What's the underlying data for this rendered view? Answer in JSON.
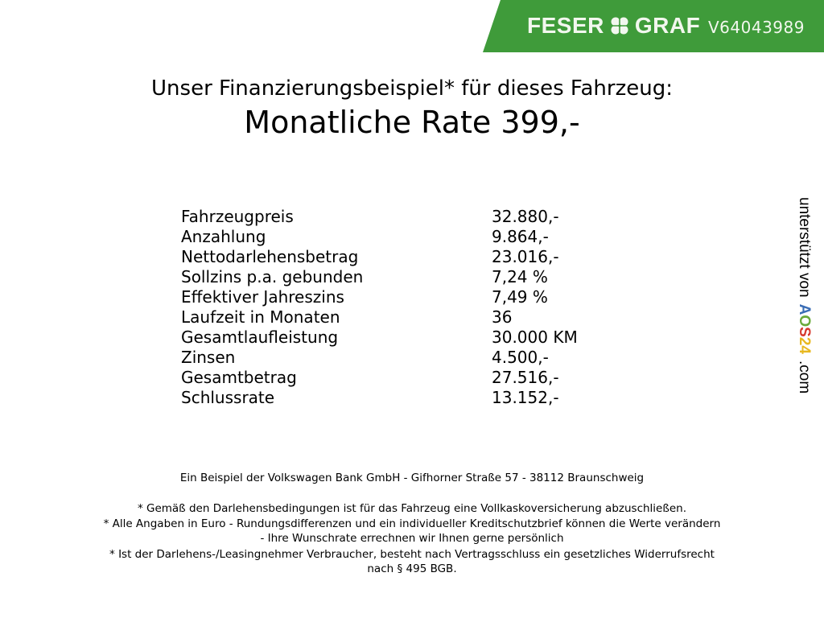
{
  "header": {
    "brand_left": "FESER",
    "brand_right": "GRAF",
    "vehicle_id": "V64043989",
    "brand_color": "#3f9b3a",
    "logo_icon": "clover-icon"
  },
  "title": "Unser Finanzierungsbeispiel* für dieses Fahrzeug:",
  "rate": "Monatliche Rate 399,-",
  "rows": [
    {
      "label": "Fahrzeugpreis",
      "value": "32.880,-"
    },
    {
      "label": "Anzahlung",
      "value": "9.864,-"
    },
    {
      "label": "Nettodarlehensbetrag",
      "value": "23.016,-"
    },
    {
      "label": "Sollzins p.a. gebunden",
      "value": "7,24 %"
    },
    {
      "label": "Effektiver Jahreszins",
      "value": "7,49 %"
    },
    {
      "label": "Laufzeit in Monaten",
      "value": "36"
    },
    {
      "label": "Gesamtlaufleistung",
      "value": "30.000 KM"
    },
    {
      "label": "Zinsen",
      "value": "4.500,-"
    },
    {
      "label": "Gesamtbetrag",
      "value": "27.516,-"
    },
    {
      "label": "Schlussrate",
      "value": "13.152,-"
    }
  ],
  "side": {
    "text": "unterstützt von",
    "logo": "AOS24",
    ".com": ".com"
  },
  "footer": {
    "bank": "Ein Beispiel der Volkswagen Bank GmbH - Gifhorner Straße 57 - 38112 Braunschweig",
    "note1": "* Gemäß den Darlehensbedingungen ist für das Fahrzeug eine Vollkaskoversicherung abzuschließen.",
    "note2a": "* Alle Angaben in Euro - Rundungsdifferenzen und ein individueller Kreditschutzbrief können die Werte verändern",
    "note2b": "- Ihre Wunschrate errechnen wir Ihnen gerne persönlich",
    "note3a": "* Ist der Darlehens-/Leasingnehmer Verbraucher, besteht nach Vertragsschluss ein gesetzliches Widerrufsrecht",
    "note3b": "nach § 495 BGB."
  }
}
